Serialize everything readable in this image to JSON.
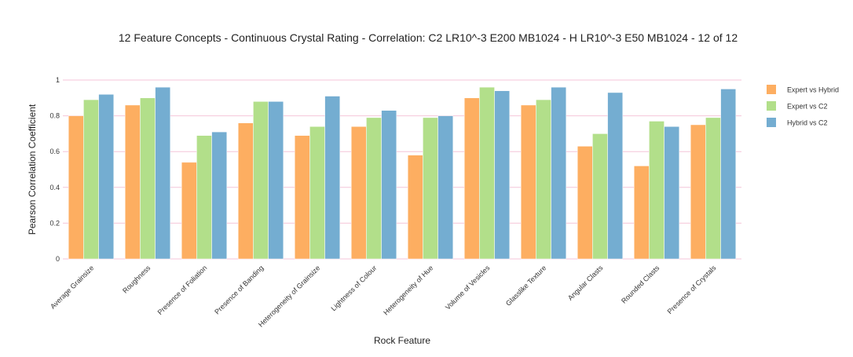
{
  "chart_data": {
    "type": "bar",
    "title": "12 Feature Concepts - Continuous Crystal Rating - Correlation: C2 LR10^-3 E200 MB1024 - H LR10^-3 E50 MB1024 - 12 of 12",
    "xlabel": "Rock Feature",
    "ylabel": "Pearson Correlation Coefficient",
    "ylim": [
      0,
      1
    ],
    "yticks": [
      "0",
      "0.2",
      "0.4",
      "0.6",
      "0.8",
      "1"
    ],
    "grid": true,
    "legend_position": "right",
    "categories": [
      "Average Grainsize",
      "Roughness",
      "Presence of Foliation",
      "Presence of Banding",
      "Heterogeneity of Grainsize",
      "Lightness of Colour",
      "Heterogeneity of Hue",
      "Volume of Vesicles",
      "Glasslike Texture",
      "Angular Clasts",
      "Rounded Clasts",
      "Presence of Crystals"
    ],
    "series": [
      {
        "name": "Expert vs Hybrid",
        "color": "#fdae61",
        "values": [
          0.8,
          0.86,
          0.54,
          0.76,
          0.69,
          0.74,
          0.58,
          0.9,
          0.86,
          0.63,
          0.52,
          0.75
        ]
      },
      {
        "name": "Expert vs C2",
        "color": "#b2df8a",
        "values": [
          0.89,
          0.9,
          0.69,
          0.88,
          0.74,
          0.79,
          0.79,
          0.96,
          0.89,
          0.7,
          0.77,
          0.79
        ]
      },
      {
        "name": "Hybrid vs C2",
        "color": "#74add1",
        "values": [
          0.92,
          0.96,
          0.71,
          0.88,
          0.91,
          0.83,
          0.8,
          0.94,
          0.96,
          0.93,
          0.74,
          0.95
        ]
      }
    ],
    "colors": {
      "grid": "#f4c6d8",
      "background": "#ffffff"
    }
  }
}
